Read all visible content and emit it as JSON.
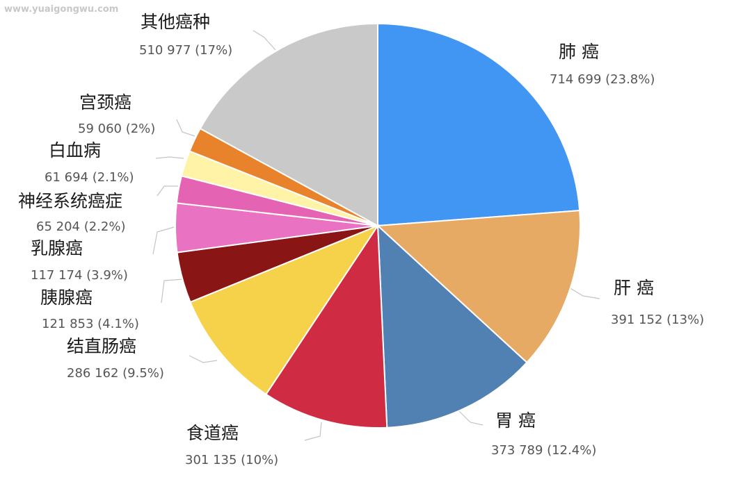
{
  "watermark": "www.yuaigongwu.com",
  "chart_data": {
    "type": "pie",
    "slices": [
      {
        "category": "肺 癌",
        "count": 714699,
        "value_text": "714 699 (23.8%)",
        "color": "#4196f3"
      },
      {
        "category": "肝 癌",
        "count": 391152,
        "value_text": "391 152 (13%)",
        "color": "#e6aa64"
      },
      {
        "category": "胃 癌",
        "count": 373789,
        "value_text": "373 789 (12.4%)",
        "color": "#5181b2"
      },
      {
        "category": "食道癌",
        "count": 301135,
        "value_text": "301 135 (10%)",
        "color": "#cf2b42"
      },
      {
        "category": "结直肠癌",
        "count": 286162,
        "value_text": "286 162 (9.5%)",
        "color": "#f5d24a"
      },
      {
        "category": "胰腺癌",
        "count": 121853,
        "value_text": "121 853 (4.1%)",
        "color": "#8a1515"
      },
      {
        "category": "乳腺癌",
        "count": 117174,
        "value_text": "117 174 (3.9%)",
        "color": "#ea72c2"
      },
      {
        "category": "神经系统癌症",
        "count": 65204,
        "value_text": "65 204 (2.2%)",
        "color": "#e463b3"
      },
      {
        "category": "白血病",
        "count": 61694,
        "value_text": "61 694 (2.1%)",
        "color": "#fff3a8"
      },
      {
        "category": "宫颈癌",
        "count": 59060,
        "value_text": "59 060 (2%)",
        "color": "#e8832c"
      },
      {
        "category": "其他癌种",
        "count": 510977,
        "value_text": "510 977 (17%)",
        "color": "#c9c9c9"
      }
    ]
  }
}
